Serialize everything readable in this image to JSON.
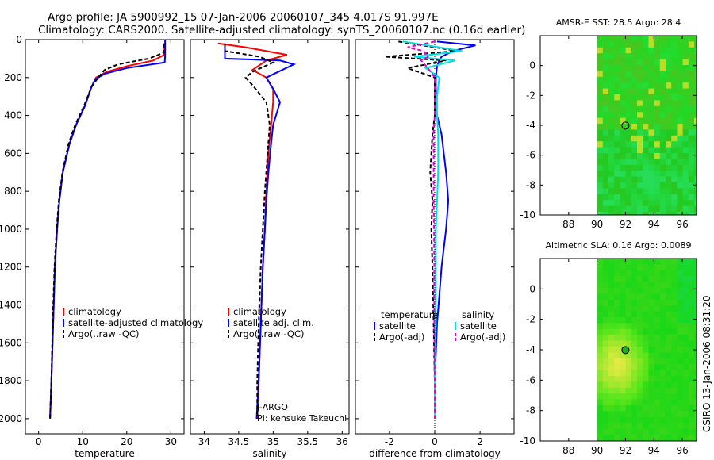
{
  "header": {
    "title_line1": "Argo profile: JA 5900992_15 07-Jan-2006 20060107_345 4.017S 91.997E",
    "title_line2": "Climatology: CARS2000. Satellite-adjusted climatology: synTS_20060107.nc (0.16d earlier)"
  },
  "side_label": "CSIRO 13-Jan-2006 08:31:20",
  "colors": {
    "climatology": "#ff0000",
    "satellite": "#0000ff",
    "argo": "#000000",
    "satellite_diff": "#00e0e0",
    "argo_diff_salinity": "#e000e0"
  },
  "chart_data": [
    {
      "type": "line",
      "id": "temperature",
      "xlabel": "temperature",
      "ylabel": "",
      "xlim": [
        -3,
        33
      ],
      "ylim": [
        2080,
        0
      ],
      "xticks": [
        0,
        10,
        20,
        30
      ],
      "yticks": [
        0,
        200,
        400,
        600,
        800,
        1000,
        1200,
        1400,
        1600,
        1800,
        2000
      ],
      "series": [
        {
          "name": "climatology",
          "color": "#ff0000",
          "dash": "",
          "x": [
            28.6,
            28.5,
            26.0,
            20.0,
            15.5,
            13.0,
            12.0,
            10.5,
            8.5,
            7.0,
            5.5,
            4.7,
            4.2,
            3.7,
            3.3,
            2.9,
            2.6
          ],
          "y": [
            20,
            80,
            110,
            140,
            170,
            200,
            250,
            350,
            450,
            550,
            700,
            850,
            1000,
            1200,
            1500,
            1800,
            2000
          ]
        },
        {
          "name": "satellite-adjusted climatology",
          "color": "#0000ff",
          "dash": "",
          "x": [
            28.7,
            28.7,
            28.6,
            20.0,
            15.0,
            12.8,
            12.0,
            10.5,
            8.5,
            7.0,
            5.5,
            4.7,
            4.2,
            3.7,
            3.3,
            2.9,
            2.6
          ],
          "y": [
            0,
            90,
            120,
            150,
            180,
            210,
            250,
            350,
            450,
            550,
            700,
            850,
            1000,
            1200,
            1500,
            1800,
            2000
          ]
        },
        {
          "name": "Argo(..raw -QC)",
          "color": "#000000",
          "dash": "5,3",
          "x": [
            28.4,
            28.3,
            25.0,
            18.0,
            15.0,
            13.5,
            12.0,
            10.3,
            8.3,
            6.8,
            5.4,
            4.6,
            4.1,
            3.6,
            3.2,
            2.9,
            2.6
          ],
          "y": [
            20,
            70,
            100,
            130,
            160,
            200,
            250,
            350,
            450,
            550,
            700,
            850,
            1000,
            1200,
            1500,
            1800,
            2000
          ]
        }
      ],
      "legend": [
        "climatology",
        "satellite-adjusted climatology",
        "Argo(..raw -QC)"
      ]
    },
    {
      "type": "line",
      "id": "salinity",
      "xlabel": "salinity",
      "ylabel": "",
      "xlim": [
        33.8,
        36.1
      ],
      "ylim": [
        2080,
        0
      ],
      "xticks": [
        34,
        34.5,
        35,
        35.5,
        36
      ],
      "yticks": [
        0,
        200,
        400,
        600,
        800,
        1000,
        1200,
        1400,
        1600,
        1800,
        2000
      ],
      "series": [
        {
          "name": "climatology",
          "color": "#ff0000",
          "dash": "",
          "x": [
            34.2,
            34.6,
            35.2,
            34.9,
            34.7,
            34.9,
            35.0,
            35.0,
            34.97,
            34.93,
            34.9,
            34.88,
            34.85,
            34.82,
            34.79,
            34.77
          ],
          "y": [
            20,
            40,
            80,
            110,
            160,
            200,
            260,
            330,
            450,
            600,
            800,
            1000,
            1200,
            1500,
            1800,
            2000
          ]
        },
        {
          "name": "satellite adj. clim.",
          "color": "#0000ff",
          "dash": "",
          "x": [
            34.3,
            34.3,
            35.1,
            35.3,
            34.9,
            35.0,
            35.1,
            35.0,
            34.97,
            34.93,
            34.9,
            34.88,
            34.85,
            34.82,
            34.79,
            34.76
          ],
          "y": [
            20,
            100,
            110,
            130,
            200,
            260,
            330,
            450,
            550,
            700,
            850,
            1000,
            1200,
            1500,
            1800,
            2000
          ]
        },
        {
          "name": "Argo(..raw -QC)",
          "color": "#000000",
          "dash": "5,3",
          "x": [
            34.3,
            34.3,
            34.8,
            35.0,
            34.7,
            34.6,
            34.7,
            34.9,
            34.95,
            34.92,
            34.88,
            34.85,
            34.82,
            34.79,
            34.77,
            34.77
          ],
          "y": [
            20,
            60,
            90,
            120,
            170,
            200,
            240,
            330,
            450,
            600,
            800,
            1000,
            1200,
            1500,
            1800,
            2000
          ]
        }
      ],
      "legend": [
        "climatology",
        "satellite adj. clim.",
        "Argo(..raw -QC)"
      ],
      "annotation": [
        "J-ARGO",
        "PI: kensuke Takeuchi"
      ]
    },
    {
      "type": "line",
      "id": "difference",
      "xlabel": "difference from climatology",
      "ylabel": "",
      "xlim": [
        -3.5,
        3.5
      ],
      "ylim": [
        2080,
        0
      ],
      "xticks": [
        -2,
        0,
        2
      ],
      "yticks": [
        0,
        200,
        400,
        600,
        800,
        1000,
        1200,
        1400,
        1600,
        1800,
        2000
      ],
      "series": [
        {
          "name": "satellite",
          "group": "temperature",
          "color": "#0000ff",
          "dash": "",
          "x": [
            0.1,
            1.8,
            0.8,
            0.3,
            0.2,
            0.1,
            0.05,
            0.05,
            0.1,
            0.3,
            0.5,
            0.6,
            0.5,
            0.3,
            0.1,
            0.0,
            0.0
          ],
          "y": [
            10,
            30,
            60,
            90,
            110,
            140,
            200,
            300,
            400,
            500,
            700,
            850,
            1000,
            1200,
            1500,
            1800,
            2000
          ]
        },
        {
          "name": "Argo(-adj)",
          "group": "temperature",
          "color": "#000000",
          "dash": "5,3",
          "x": [
            -1.6,
            0.0,
            1.0,
            -2.2,
            0.5,
            -1.2,
            0.0,
            0.0,
            0.0,
            -0.1,
            -0.2,
            -0.1,
            -0.15,
            -0.1,
            -0.05,
            0.0,
            0.0
          ],
          "y": [
            10,
            40,
            60,
            90,
            110,
            150,
            200,
            300,
            400,
            500,
            700,
            850,
            1000,
            1200,
            1500,
            1800,
            2000
          ]
        },
        {
          "name": "satellite",
          "group": "salinity",
          "color": "#00e0e0",
          "dash": "",
          "x": [
            -1.4,
            0.2,
            1.2,
            -0.9,
            0.9,
            -0.4,
            0.2,
            0.1,
            0.1,
            0.15,
            0.15,
            0.1,
            0.05,
            0.05,
            0.05,
            0.0,
            0.0
          ],
          "y": [
            10,
            40,
            60,
            90,
            110,
            150,
            200,
            300,
            400,
            500,
            700,
            850,
            1000,
            1200,
            1500,
            1800,
            2000
          ]
        },
        {
          "name": "Argo(-adj)",
          "group": "salinity",
          "color": "#e000e0",
          "dash": "5,3",
          "x": [
            0.0,
            -1.2,
            -0.5,
            -0.3,
            -0.6,
            -0.3,
            0.0,
            0.0,
            0.0,
            -0.05,
            -0.05,
            -0.05,
            -0.03,
            -0.02,
            -0.02,
            0.0,
            0.0
          ],
          "y": [
            10,
            40,
            60,
            90,
            110,
            150,
            200,
            300,
            400,
            500,
            700,
            850,
            1000,
            1200,
            1500,
            1800,
            2000
          ]
        }
      ],
      "legend_headers": [
        "temperature",
        "salinity"
      ],
      "legend": [
        "satellite",
        "Argo(-adj)",
        "satellite",
        "Argo(-adj)"
      ]
    },
    {
      "type": "heatmap",
      "id": "sst_map",
      "title": "AMSR-E SST: 28.5 Argo: 28.4",
      "xlim": [
        86,
        97
      ],
      "ylim": [
        -10,
        2
      ],
      "xticks": [
        88,
        90,
        92,
        94,
        96
      ],
      "yticks": [
        0,
        -2,
        -4,
        -6,
        -8,
        -10
      ],
      "data_start_lon": 90,
      "argo_position": {
        "lon": 91.997,
        "lat": -4.017
      }
    },
    {
      "type": "heatmap",
      "id": "sla_map",
      "title": "Altimetric SLA: 0.16 Argo: 0.0089",
      "xlim": [
        86,
        97
      ],
      "ylim": [
        -10,
        2
      ],
      "xticks": [
        88,
        90,
        92,
        94,
        96
      ],
      "yticks": [
        0,
        -2,
        -4,
        -6,
        -8,
        -10
      ],
      "data_start_lon": 90,
      "argo_position": {
        "lon": 91.997,
        "lat": -4.017
      }
    }
  ]
}
